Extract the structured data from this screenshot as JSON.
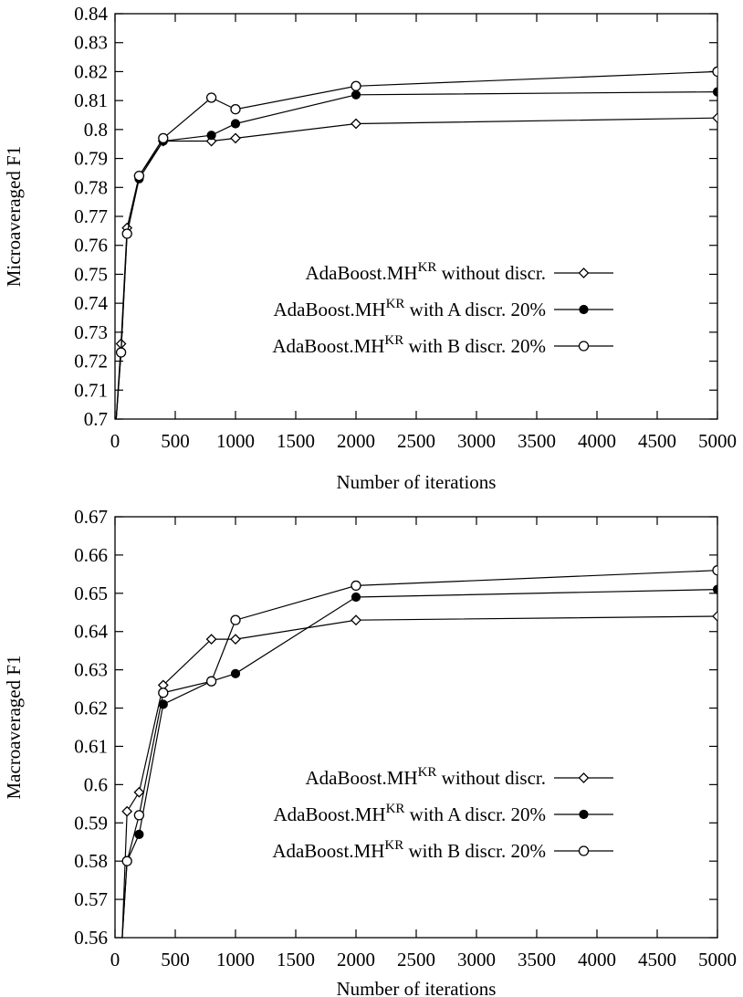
{
  "chart_data": [
    {
      "type": "line",
      "title": "",
      "xlabel": "Number of iterations",
      "ylabel": "Microaveraged F1",
      "xlim": [
        0,
        5000
      ],
      "ylim": [
        0.7,
        0.84
      ],
      "xticks": [
        "0",
        "500",
        "1000",
        "1500",
        "2000",
        "2500",
        "3000",
        "3500",
        "4000",
        "4500",
        "5000"
      ],
      "yticks": [
        "0.7",
        "0.71",
        "0.72",
        "0.73",
        "0.74",
        "0.75",
        "0.76",
        "0.77",
        "0.78",
        "0.79",
        "0.8",
        "0.81",
        "0.82",
        "0.83",
        "0.84"
      ],
      "grid": false,
      "legend_position": "center-right",
      "x": [
        50,
        100,
        200,
        400,
        800,
        1000,
        2000,
        5000
      ],
      "series": [
        {
          "legend_main": "AdaBoost.MH",
          "legend_sup": "KR",
          "legend_suffix": "without discr.",
          "marker": "diamond",
          "points": [
            [
              10,
              0.7
            ],
            [
              50,
              0.726
            ],
            [
              100,
              0.766
            ],
            [
              200,
              0.784
            ],
            [
              400,
              0.796
            ],
            [
              800,
              0.796
            ],
            [
              1000,
              0.797
            ],
            [
              2000,
              0.802
            ],
            [
              5000,
              0.804
            ]
          ]
        },
        {
          "legend_main": "AdaBoost.MH",
          "legend_sup": "KR",
          "legend_suffix": "with A discr. 20%",
          "marker": "filled-circle",
          "points": [
            [
              10,
              0.7
            ],
            [
              50,
              0.723
            ],
            [
              100,
              0.764
            ],
            [
              200,
              0.783
            ],
            [
              400,
              0.796
            ],
            [
              800,
              0.798
            ],
            [
              1000,
              0.802
            ],
            [
              2000,
              0.812
            ],
            [
              5000,
              0.813
            ]
          ]
        },
        {
          "legend_main": "AdaBoost.MH",
          "legend_sup": "KR",
          "legend_suffix": "with B discr. 20%",
          "marker": "open-circle",
          "points": [
            [
              10,
              0.7
            ],
            [
              50,
              0.723
            ],
            [
              100,
              0.764
            ],
            [
              200,
              0.784
            ],
            [
              400,
              0.797
            ],
            [
              800,
              0.811
            ],
            [
              1000,
              0.807
            ],
            [
              2000,
              0.815
            ],
            [
              5000,
              0.82
            ]
          ]
        }
      ]
    },
    {
      "type": "line",
      "title": "",
      "xlabel": "Number of iterations",
      "ylabel": "Macroaveraged F1",
      "xlim": [
        0,
        5000
      ],
      "ylim": [
        0.56,
        0.67
      ],
      "xticks": [
        "0",
        "500",
        "1000",
        "1500",
        "2000",
        "2500",
        "3000",
        "3500",
        "4000",
        "4500",
        "5000"
      ],
      "yticks": [
        "0.56",
        "0.57",
        "0.58",
        "0.59",
        "0.6",
        "0.61",
        "0.62",
        "0.63",
        "0.64",
        "0.65",
        "0.66",
        "0.67"
      ],
      "grid": false,
      "legend_position": "center-right",
      "x": [
        100,
        200,
        400,
        800,
        1000,
        2000,
        5000
      ],
      "series": [
        {
          "legend_main": "AdaBoost.MH",
          "legend_sup": "KR",
          "legend_suffix": "without discr.",
          "marker": "diamond",
          "points": [
            [
              60,
              0.56
            ],
            [
              100,
              0.593
            ],
            [
              200,
              0.598
            ],
            [
              400,
              0.626
            ],
            [
              800,
              0.638
            ],
            [
              1000,
              0.638
            ],
            [
              2000,
              0.643
            ],
            [
              5000,
              0.644
            ]
          ]
        },
        {
          "legend_main": "AdaBoost.MH",
          "legend_sup": "KR",
          "legend_suffix": "with A discr. 20%",
          "marker": "filled-circle",
          "points": [
            [
              60,
              0.56
            ],
            [
              100,
              0.58
            ],
            [
              200,
              0.587
            ],
            [
              400,
              0.621
            ],
            [
              800,
              0.627
            ],
            [
              1000,
              0.629
            ],
            [
              2000,
              0.649
            ],
            [
              5000,
              0.651
            ]
          ]
        },
        {
          "legend_main": "AdaBoost.MH",
          "legend_sup": "KR",
          "legend_suffix": "with B discr. 20%",
          "marker": "open-circle",
          "points": [
            [
              60,
              0.56
            ],
            [
              100,
              0.58
            ],
            [
              200,
              0.592
            ],
            [
              400,
              0.624
            ],
            [
              800,
              0.627
            ],
            [
              1000,
              0.643
            ],
            [
              2000,
              0.652
            ],
            [
              5000,
              0.656
            ]
          ]
        }
      ]
    }
  ]
}
